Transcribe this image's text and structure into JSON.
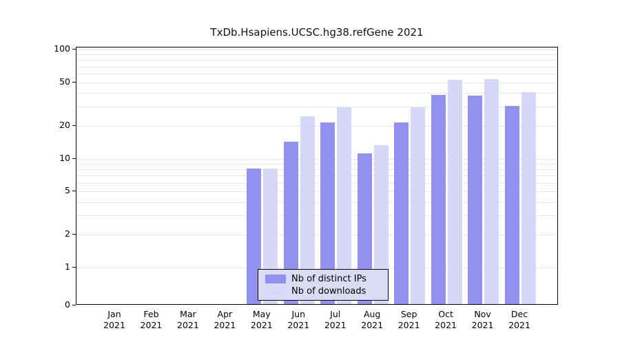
{
  "chart_data": {
    "type": "bar",
    "title": "TxDb.Hsapiens.UCSC.hg38.refGene 2021",
    "categories": [
      "Jan",
      "Feb",
      "Mar",
      "Apr",
      "May",
      "Jun",
      "Jul",
      "Aug",
      "Sep",
      "Oct",
      "Nov",
      "Dec"
    ],
    "year": "2021",
    "series": [
      {
        "name": "Nb of distinct IPs",
        "color": "#9292ee",
        "values": [
          0,
          0,
          0,
          0,
          8,
          14,
          21,
          11,
          21,
          38,
          37,
          30
        ]
      },
      {
        "name": "Nb of downloads",
        "color": "#d7d7f8",
        "values": [
          0,
          0,
          0,
          0,
          8,
          24,
          29,
          13,
          29,
          52,
          53,
          40
        ]
      }
    ],
    "y_ticks": [
      0,
      1,
      2,
      5,
      10,
      20,
      50,
      100
    ],
    "yscale": "log",
    "ylim": [
      0,
      100
    ],
    "grid": "horizontal-minor-log",
    "legend_position": "bottom-center",
    "colors": {
      "axis": "#000000",
      "gridline": "#e7e7e7",
      "legend_bg": "#dbdbf4"
    }
  }
}
